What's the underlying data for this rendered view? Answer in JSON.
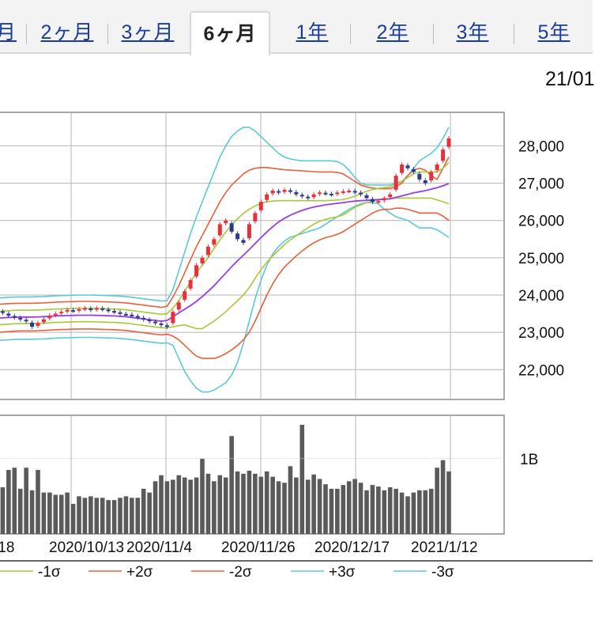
{
  "tabs": [
    {
      "label": "月",
      "active": false
    },
    {
      "label": "2ヶ月",
      "active": false
    },
    {
      "label": "3ヶ月",
      "active": false
    },
    {
      "label": "6ヶ月",
      "active": true
    },
    {
      "label": "1年",
      "active": false
    },
    {
      "label": "2年",
      "active": false
    },
    {
      "label": "3年",
      "active": false
    },
    {
      "label": "5年",
      "active": false
    }
  ],
  "header_date": "21/01",
  "chart_data": [
    {
      "type": "candlestick",
      "title": "",
      "xlabel": "",
      "ylabel": "",
      "ylim": [
        21200,
        28900
      ],
      "y_ticks": [
        "28,000",
        "27,000",
        "26,000",
        "25,000",
        "24,000",
        "23,000",
        "22,000"
      ],
      "y_tick_values": [
        28000,
        27000,
        26000,
        25000,
        24000,
        23000,
        22000
      ],
      "x_ticks": [
        "/18",
        "2020/10/13",
        "2020/11/4",
        "2020/11/26",
        "2020/12/17",
        "2021/1/12"
      ],
      "grid": true,
      "colors": {
        "up": "#e8303a",
        "down": "#2b3a8f",
        "ma": "#9a3de0",
        "sigma1": "#a8c83a",
        "sigma2": "#e8603a",
        "sigma3": "#5cc8d8"
      },
      "close": [
        23580,
        23520,
        23450,
        23400,
        23350,
        23300,
        23150,
        23250,
        23350,
        23450,
        23500,
        23550,
        23600,
        23580,
        23620,
        23650,
        23600,
        23650,
        23620,
        23580,
        23550,
        23500,
        23480,
        23450,
        23400,
        23350,
        23300,
        23250,
        23200,
        23150,
        23550,
        23800,
        24100,
        24400,
        24800,
        25000,
        25300,
        25500,
        25900,
        26000,
        25700,
        25500,
        25400,
        25900,
        26200,
        26500,
        26700,
        26800,
        26750,
        26820,
        26780,
        26700,
        26650,
        26600,
        26700,
        26750,
        26720,
        26700,
        26750,
        26780,
        26800,
        26760,
        26700,
        26600,
        26500,
        26520,
        26600,
        26700,
        27200,
        27500,
        27400,
        27300,
        27100,
        27000,
        27300,
        27500,
        27900,
        28200
      ],
      "ma": [
        23380,
        23390,
        23400,
        23405,
        23410,
        23410,
        23410,
        23415,
        23420,
        23430,
        23440,
        23445,
        23450,
        23455,
        23460,
        23460,
        23460,
        23455,
        23450,
        23445,
        23440,
        23430,
        23420,
        23400,
        23380,
        23360,
        23340,
        23320,
        23300,
        23320,
        23420,
        23520,
        23620,
        23720,
        23830,
        23960,
        24100,
        24250,
        24420,
        24590,
        24760,
        24920,
        25070,
        25220,
        25380,
        25540,
        25690,
        25830,
        25960,
        26060,
        26140,
        26210,
        26270,
        26320,
        26360,
        26390,
        26420,
        26440,
        26460,
        26480,
        26500,
        26520,
        26530,
        26540,
        26550,
        26560,
        26570,
        26580,
        26620,
        26660,
        26700,
        26740,
        26770,
        26800,
        26840,
        26880,
        26930,
        26990
      ],
      "plus2": [
        23750,
        23760,
        23770,
        23775,
        23780,
        23780,
        23780,
        23785,
        23790,
        23800,
        23810,
        23815,
        23820,
        23825,
        23830,
        23830,
        23830,
        23825,
        23820,
        23815,
        23810,
        23800,
        23790,
        23770,
        23750,
        23730,
        23710,
        23690,
        23670,
        23700,
        23950,
        24250,
        24600,
        24950,
        25300,
        25600,
        25900,
        26200,
        26500,
        26750,
        26950,
        27100,
        27250,
        27350,
        27400,
        27420,
        27420,
        27400,
        27380,
        27360,
        27350,
        27340,
        27330,
        27320,
        27310,
        27300,
        27300,
        27300,
        27290,
        27250,
        27150,
        27050,
        26950,
        26900,
        26870,
        26850,
        26850,
        26850,
        26900,
        27000,
        27200,
        27350,
        27400,
        27350,
        27200,
        27100,
        27400,
        27700
      ],
      "minus2": [
        23000,
        23010,
        23020,
        23030,
        23040,
        23040,
        23040,
        23045,
        23050,
        23060,
        23070,
        23075,
        23080,
        23085,
        23090,
        23090,
        23090,
        23085,
        23080,
        23075,
        23070,
        23060,
        23050,
        23030,
        23010,
        22990,
        22970,
        22950,
        22930,
        22950,
        22900,
        22800,
        22650,
        22500,
        22360,
        22300,
        22300,
        22300,
        22350,
        22430,
        22530,
        22650,
        22800,
        23000,
        23300,
        23650,
        24000,
        24300,
        24550,
        24750,
        24900,
        25050,
        25180,
        25300,
        25400,
        25480,
        25540,
        25580,
        25630,
        25700,
        25800,
        25900,
        26000,
        26100,
        26200,
        26270,
        26300,
        26300,
        26330,
        26330,
        26300,
        26250,
        26200,
        26200,
        26200,
        26200,
        26120,
        26000
      ],
      "plus1": [
        23560,
        23570,
        23580,
        23590,
        23595,
        23595,
        23595,
        23600,
        23605,
        23615,
        23625,
        23630,
        23635,
        23640,
        23645,
        23645,
        23645,
        23640,
        23635,
        23630,
        23625,
        23615,
        23605,
        23585,
        23565,
        23545,
        23525,
        23505,
        23485,
        23500,
        23650,
        23850,
        24100,
        24350,
        24600,
        24800,
        25000,
        25250,
        25470,
        25690,
        25880,
        26050,
        26190,
        26300,
        26390,
        26460,
        26500,
        26520,
        26530,
        26530,
        26530,
        26530,
        26530,
        26530,
        26530,
        26530,
        26530,
        26540,
        26550,
        26560,
        26600,
        26650,
        26720,
        26780,
        26830,
        26860,
        26880,
        26900,
        26960,
        27050,
        27150,
        27250,
        27300,
        27300,
        27300,
        27300,
        27400,
        27550
      ],
      "minus1": [
        23200,
        23210,
        23220,
        23230,
        23235,
        23235,
        23235,
        23240,
        23245,
        23255,
        23265,
        23270,
        23275,
        23280,
        23285,
        23285,
        23285,
        23280,
        23275,
        23270,
        23265,
        23255,
        23245,
        23225,
        23205,
        23185,
        23165,
        23145,
        23125,
        23120,
        23150,
        23180,
        23200,
        23150,
        23100,
        23100,
        23200,
        23300,
        23420,
        23550,
        23700,
        23850,
        24000,
        24200,
        24450,
        24680,
        24880,
        25050,
        25200,
        25350,
        25480,
        25590,
        25700,
        25800,
        25900,
        25980,
        26030,
        26070,
        26100,
        26150,
        26250,
        26350,
        26420,
        26480,
        26520,
        26550,
        26570,
        26580,
        26600,
        26600,
        26600,
        26600,
        26600,
        26600,
        26600,
        26550,
        26500,
        26450
      ],
      "plus3": [
        23920,
        23930,
        23940,
        23945,
        23950,
        23950,
        23950,
        23955,
        23960,
        23970,
        23980,
        23985,
        23990,
        23995,
        24000,
        24000,
        24000,
        23995,
        23990,
        23985,
        23980,
        23970,
        23960,
        23940,
        23920,
        23900,
        23880,
        23860,
        23840,
        23850,
        24150,
        24650,
        25150,
        25650,
        26100,
        26500,
        26900,
        27300,
        27700,
        28000,
        28250,
        28400,
        28500,
        28500,
        28400,
        28250,
        28100,
        27950,
        27800,
        27700,
        27650,
        27620,
        27600,
        27600,
        27600,
        27600,
        27600,
        27600,
        27580,
        27500,
        27350,
        27150,
        27000,
        26950,
        26950,
        26950,
        26950,
        26950,
        27000,
        27050,
        27200,
        27400,
        27600,
        27700,
        27800,
        27950,
        28200,
        28500
      ],
      "minus3": [
        22780,
        22790,
        22800,
        22810,
        22815,
        22815,
        22815,
        22820,
        22825,
        22835,
        22845,
        22850,
        22855,
        22860,
        22865,
        22865,
        22865,
        22860,
        22855,
        22850,
        22845,
        22835,
        22825,
        22805,
        22785,
        22765,
        22745,
        22725,
        22705,
        22720,
        22650,
        22300,
        21950,
        21700,
        21500,
        21400,
        21400,
        21450,
        21550,
        21650,
        21850,
        22200,
        22700,
        23300,
        23900,
        24400,
        24800,
        25100,
        25300,
        25450,
        25550,
        25600,
        25650,
        25700,
        25750,
        25800,
        25900,
        26000,
        26100,
        26200,
        26300,
        26380,
        26450,
        26480,
        26480,
        26450,
        26300,
        26200,
        26100,
        26050,
        26000,
        25900,
        25800,
        25800,
        25800,
        25750,
        25650,
        25550
      ],
      "volume_label": "1B",
      "volume_max": 1.45,
      "volume": [
        0.82,
        0.62,
        0.85,
        0.88,
        0.6,
        0.88,
        0.58,
        0.85,
        0.55,
        0.55,
        0.52,
        0.52,
        0.55,
        0.4,
        0.5,
        0.48,
        0.5,
        0.48,
        0.48,
        0.45,
        0.45,
        0.48,
        0.5,
        0.48,
        0.48,
        0.6,
        0.55,
        0.7,
        0.78,
        0.7,
        0.72,
        0.78,
        0.75,
        0.72,
        0.75,
        1.0,
        0.8,
        0.7,
        0.78,
        0.75,
        1.3,
        0.83,
        0.8,
        0.84,
        0.8,
        0.76,
        0.83,
        0.76,
        0.7,
        0.68,
        0.9,
        0.75,
        1.45,
        0.72,
        0.79,
        0.73,
        0.66,
        0.6,
        0.6,
        0.65,
        0.7,
        0.73,
        0.68,
        0.58,
        0.65,
        0.63,
        0.58,
        0.62,
        0.6,
        0.55,
        0.5,
        0.55,
        0.58,
        0.58,
        0.6,
        0.88,
        0.98,
        0.83
      ]
    }
  ],
  "legend": [
    {
      "label": "-1σ",
      "color": "#a8c83a"
    },
    {
      "label": "+2σ",
      "color": "#e8603a"
    },
    {
      "label": "-2σ",
      "color": "#e8603a"
    },
    {
      "label": "+3σ",
      "color": "#5cc8d8"
    },
    {
      "label": "-3σ",
      "color": "#5cc8d8"
    }
  ]
}
